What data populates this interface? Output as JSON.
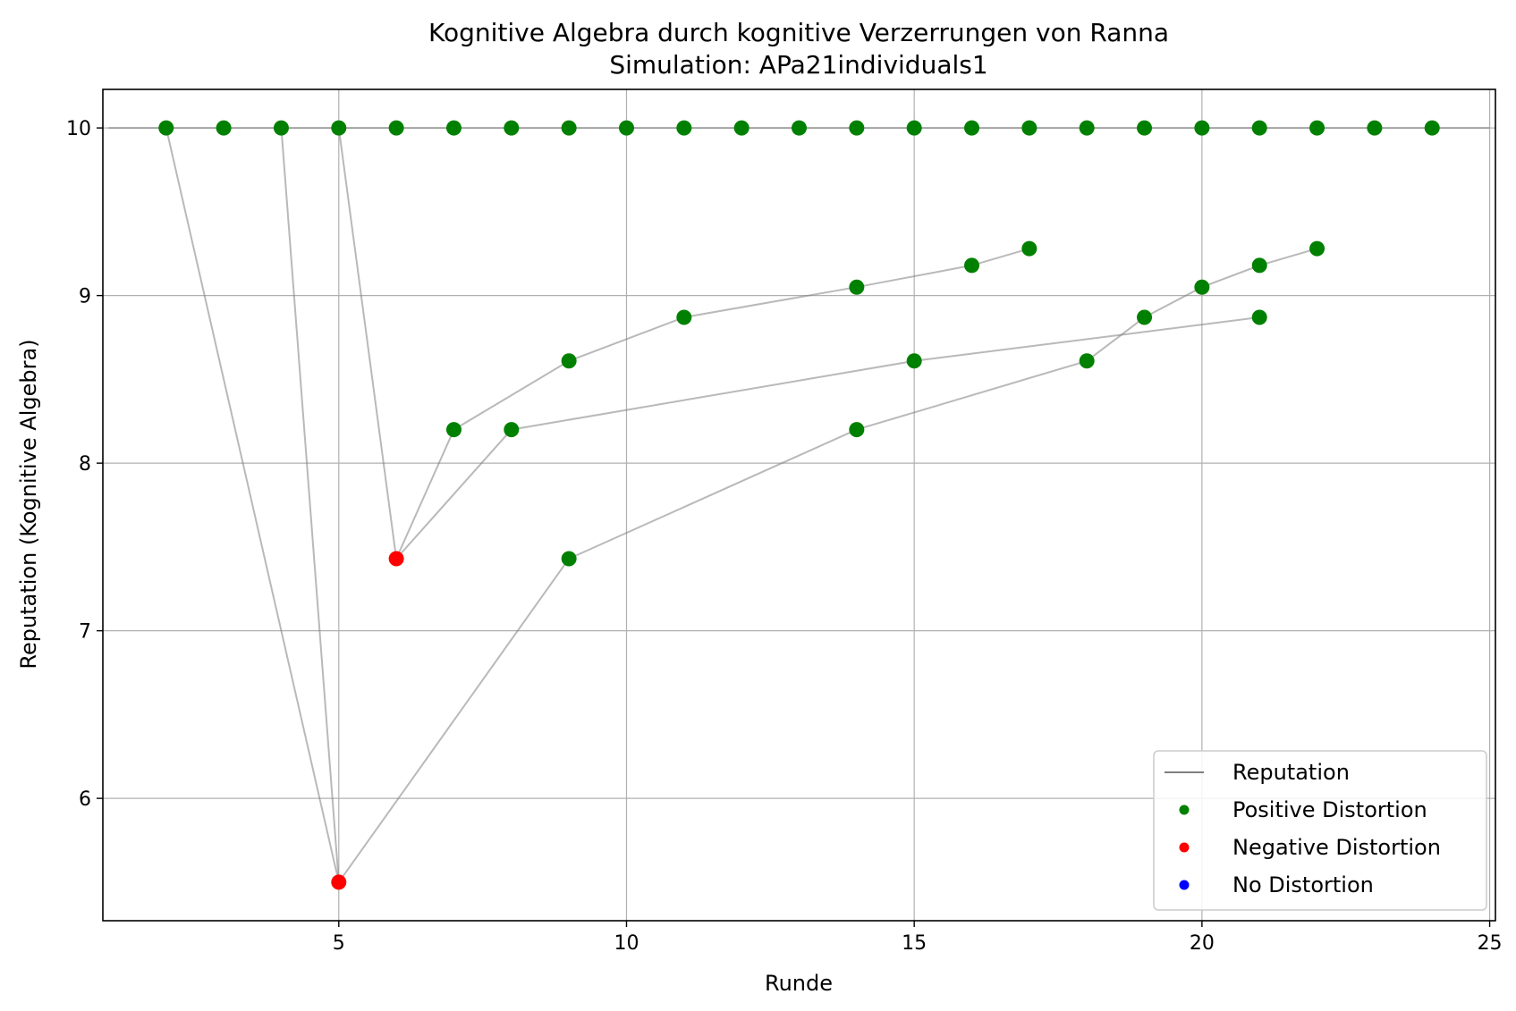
{
  "chart_data": {
    "type": "scatter",
    "title": "Kognitive Algebra durch kognitive Verzerrungen von Ranna",
    "subtitle": "Simulation: APa21individuals1",
    "xlabel": "Runde",
    "ylabel": "Reputation (Kognitive Algebra)",
    "xlim": [
      0.9,
      25.1
    ],
    "ylim": [
      5.27,
      10.23
    ],
    "xticks": [
      5,
      10,
      15,
      20,
      25
    ],
    "yticks": [
      6,
      7,
      8,
      9,
      10
    ],
    "grid": true,
    "legend_position": "lower-right",
    "legend": [
      "Reputation",
      "Positive Distortion",
      "Negative Distortion",
      "No Distortion"
    ],
    "colors": {
      "reputation": "#808080",
      "positive": "#008000",
      "negative": "#ff0000",
      "none": "#0000ff"
    },
    "series": [
      {
        "name": "Reputation",
        "kind": "line",
        "points": [
          [
            1,
            10
          ],
          [
            25,
            10
          ]
        ]
      },
      {
        "name": "Reputation",
        "kind": "line",
        "points": [
          [
            2,
            10
          ],
          [
            5,
            5.5
          ],
          [
            9,
            7.43
          ],
          [
            14,
            8.2
          ],
          [
            18,
            8.61
          ],
          [
            19,
            8.87
          ],
          [
            20,
            9.05
          ],
          [
            21,
            9.18
          ],
          [
            22,
            9.28
          ]
        ]
      },
      {
        "name": "Reputation",
        "kind": "line",
        "points": [
          [
            4,
            10
          ],
          [
            5,
            5.5
          ]
        ]
      },
      {
        "name": "Reputation",
        "kind": "line",
        "points": [
          [
            5,
            10
          ],
          [
            6,
            7.43
          ],
          [
            7,
            8.2
          ],
          [
            9,
            8.61
          ],
          [
            11,
            8.87
          ],
          [
            14,
            9.05
          ],
          [
            16,
            9.18
          ],
          [
            17,
            9.28
          ]
        ]
      },
      {
        "name": "Reputation",
        "kind": "line",
        "points": [
          [
            6,
            7.43
          ],
          [
            8,
            8.2
          ],
          [
            15,
            8.61
          ],
          [
            21,
            8.87
          ]
        ]
      }
    ],
    "positive_points": [
      [
        2,
        10
      ],
      [
        3,
        10
      ],
      [
        4,
        10
      ],
      [
        5,
        10
      ],
      [
        6,
        10
      ],
      [
        7,
        10
      ],
      [
        8,
        10
      ],
      [
        9,
        10
      ],
      [
        10,
        10
      ],
      [
        11,
        10
      ],
      [
        12,
        10
      ],
      [
        13,
        10
      ],
      [
        14,
        10
      ],
      [
        15,
        10
      ],
      [
        16,
        10
      ],
      [
        17,
        10
      ],
      [
        18,
        10
      ],
      [
        19,
        10
      ],
      [
        20,
        10
      ],
      [
        21,
        10
      ],
      [
        22,
        10
      ],
      [
        23,
        10
      ],
      [
        24,
        10
      ],
      [
        9,
        7.43
      ],
      [
        14,
        8.2
      ],
      [
        18,
        8.61
      ],
      [
        19,
        8.87
      ],
      [
        20,
        9.05
      ],
      [
        21,
        9.18
      ],
      [
        22,
        9.28
      ],
      [
        7,
        8.2
      ],
      [
        9,
        8.61
      ],
      [
        11,
        8.87
      ],
      [
        14,
        9.05
      ],
      [
        16,
        9.18
      ],
      [
        17,
        9.28
      ],
      [
        8,
        8.2
      ],
      [
        15,
        8.61
      ],
      [
        21,
        8.87
      ]
    ],
    "negative_points": [
      [
        5,
        5.5
      ],
      [
        6,
        7.43
      ]
    ],
    "no_distortion_points": []
  }
}
